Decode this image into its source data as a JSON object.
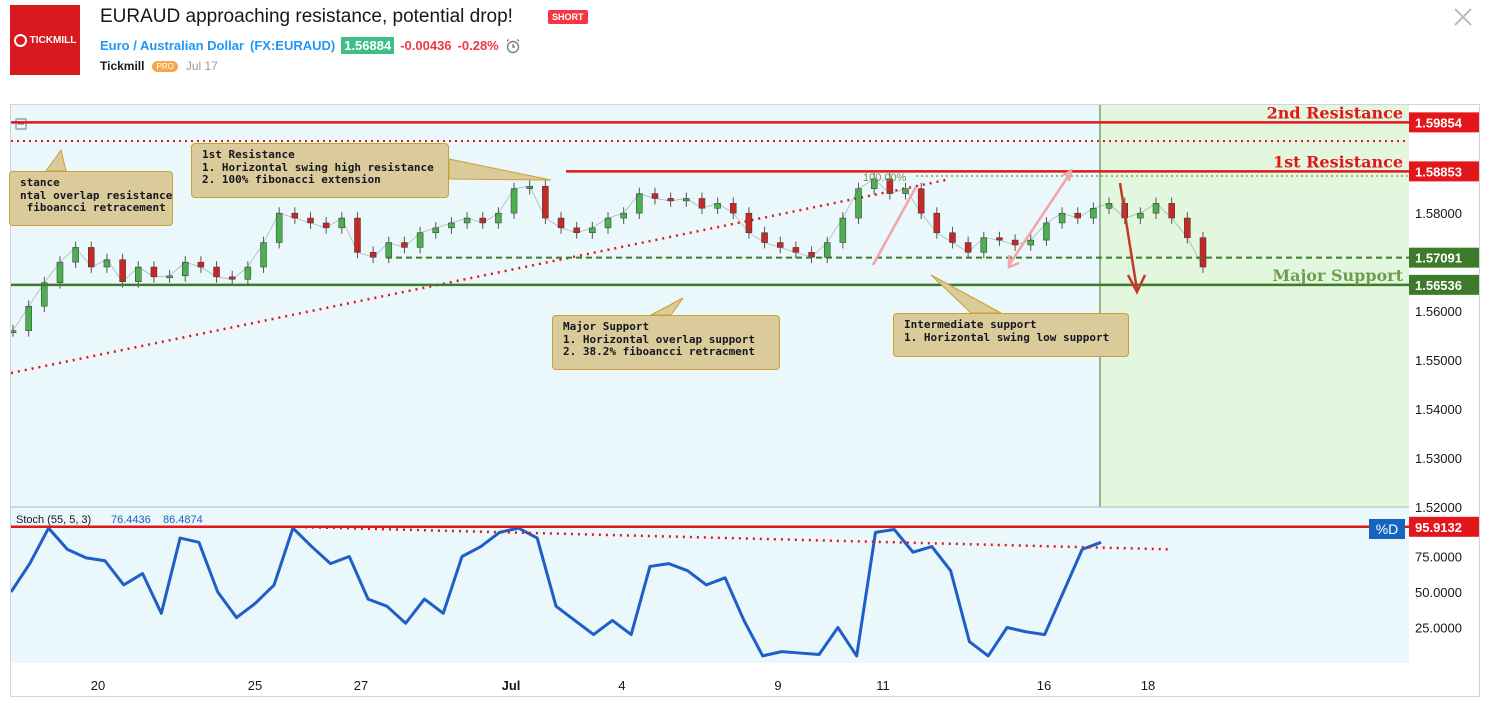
{
  "header": {
    "title": "EURAUD approaching resistance, potential drop!",
    "badge": "SHORT",
    "symbol_name": "Euro / Australian Dollar",
    "symbol_code": "(FX:EURAUD)",
    "price": "1.56884",
    "change": "-0.00436",
    "change_pct": "-0.28%",
    "author": "Tickmill",
    "author_badge": "PRO",
    "date": "Jul 17",
    "logo_text": "TICKMILL"
  },
  "colors": {
    "resistance": "#e2161b",
    "support_dark": "#3d7a29",
    "support_label": "#6d9f4e",
    "projection_zone": "#e2f7dd",
    "chart_bg": "#eaf7fb",
    "stoch": "#1e5fc7",
    "annotation_bg": "#dccb9a"
  },
  "chart_data": {
    "type": "line",
    "main_panel": {
      "ylim": [
        1.52,
        1.598
      ],
      "y_ticks": [
        "1.52000",
        "1.53000",
        "1.54000",
        "1.55000",
        "1.56000",
        "1.57000",
        "1.58000"
      ],
      "x_ticks": [
        "20",
        "25",
        "27",
        "Jul",
        "4",
        "9",
        "11",
        "16",
        "18"
      ],
      "levels": [
        {
          "name": "2nd Resistance",
          "value": "1.59854"
        },
        {
          "name": "1st Resistance",
          "value": "1.58853"
        },
        {
          "name": "",
          "value": "1.57091"
        },
        {
          "name": "Major Support",
          "value": "1.56536"
        }
      ],
      "fib_label": "100.00%",
      "series": [
        {
          "x": 0,
          "y": 1.556
        },
        {
          "x": 1,
          "y": 1.561
        },
        {
          "x": 2,
          "y": 1.5658
        },
        {
          "x": 3,
          "y": 1.57
        },
        {
          "x": 4,
          "y": 1.573
        },
        {
          "x": 5,
          "y": 1.569
        },
        {
          "x": 6,
          "y": 1.5705
        },
        {
          "x": 7,
          "y": 1.566
        },
        {
          "x": 8,
          "y": 1.569
        },
        {
          "x": 9,
          "y": 1.567
        },
        {
          "x": 10,
          "y": 1.5672
        },
        {
          "x": 11,
          "y": 1.57
        },
        {
          "x": 12,
          "y": 1.569
        },
        {
          "x": 13,
          "y": 1.567
        },
        {
          "x": 14,
          "y": 1.5665
        },
        {
          "x": 15,
          "y": 1.569
        },
        {
          "x": 16,
          "y": 1.574
        },
        {
          "x": 17,
          "y": 1.58
        },
        {
          "x": 18,
          "y": 1.579
        },
        {
          "x": 19,
          "y": 1.578
        },
        {
          "x": 20,
          "y": 1.577
        },
        {
          "x": 21,
          "y": 1.579
        },
        {
          "x": 22,
          "y": 1.572
        },
        {
          "x": 23,
          "y": 1.571
        },
        {
          "x": 24,
          "y": 1.574
        },
        {
          "x": 25,
          "y": 1.573
        },
        {
          "x": 26,
          "y": 1.576
        },
        {
          "x": 27,
          "y": 1.577
        },
        {
          "x": 28,
          "y": 1.578
        },
        {
          "x": 29,
          "y": 1.579
        },
        {
          "x": 30,
          "y": 1.578
        },
        {
          "x": 31,
          "y": 1.58
        },
        {
          "x": 32,
          "y": 1.585
        },
        {
          "x": 33,
          "y": 1.5855
        },
        {
          "x": 34,
          "y": 1.579
        },
        {
          "x": 35,
          "y": 1.577
        },
        {
          "x": 36,
          "y": 1.576
        },
        {
          "x": 37,
          "y": 1.577
        },
        {
          "x": 38,
          "y": 1.579
        },
        {
          "x": 39,
          "y": 1.58
        },
        {
          "x": 40,
          "y": 1.584
        },
        {
          "x": 41,
          "y": 1.583
        },
        {
          "x": 42,
          "y": 1.5825
        },
        {
          "x": 43,
          "y": 1.583
        },
        {
          "x": 44,
          "y": 1.581
        },
        {
          "x": 45,
          "y": 1.582
        },
        {
          "x": 46,
          "y": 1.58
        },
        {
          "x": 47,
          "y": 1.576
        },
        {
          "x": 48,
          "y": 1.574
        },
        {
          "x": 49,
          "y": 1.573
        },
        {
          "x": 50,
          "y": 1.572
        },
        {
          "x": 51,
          "y": 1.571
        },
        {
          "x": 52,
          "y": 1.574
        },
        {
          "x": 53,
          "y": 1.579
        },
        {
          "x": 54,
          "y": 1.585
        },
        {
          "x": 55,
          "y": 1.587
        },
        {
          "x": 56,
          "y": 1.584
        },
        {
          "x": 57,
          "y": 1.585
        },
        {
          "x": 58,
          "y": 1.58
        },
        {
          "x": 59,
          "y": 1.576
        },
        {
          "x": 60,
          "y": 1.574
        },
        {
          "x": 61,
          "y": 1.572
        },
        {
          "x": 62,
          "y": 1.575
        },
        {
          "x": 63,
          "y": 1.5745
        },
        {
          "x": 64,
          "y": 1.5735
        },
        {
          "x": 65,
          "y": 1.5745
        },
        {
          "x": 66,
          "y": 1.578
        },
        {
          "x": 67,
          "y": 1.58
        },
        {
          "x": 68,
          "y": 1.579
        },
        {
          "x": 69,
          "y": 1.581
        },
        {
          "x": 70,
          "y": 1.582
        },
        {
          "x": 71,
          "y": 1.579
        },
        {
          "x": 72,
          "y": 1.58
        },
        {
          "x": 73,
          "y": 1.582
        },
        {
          "x": 74,
          "y": 1.579
        },
        {
          "x": 75,
          "y": 1.575
        },
        {
          "x": 76,
          "y": 1.569
        }
      ]
    },
    "stoch_panel": {
      "label": "Stoch (55, 5, 3)",
      "values_shown": [
        "76.4436",
        "86.4874"
      ],
      "ylim": [
        0,
        100
      ],
      "y_ticks": [
        "25.0000",
        "50.0000",
        "75.0000"
      ],
      "resistance_value": "95.9132",
      "legend_tag": "%D",
      "series": [
        {
          "x": 0,
          "y": 50
        },
        {
          "x": 1,
          "y": 70
        },
        {
          "x": 2,
          "y": 95
        },
        {
          "x": 3,
          "y": 80
        },
        {
          "x": 4,
          "y": 74
        },
        {
          "x": 5,
          "y": 72
        },
        {
          "x": 6,
          "y": 55
        },
        {
          "x": 7,
          "y": 63
        },
        {
          "x": 8,
          "y": 35
        },
        {
          "x": 9,
          "y": 88
        },
        {
          "x": 10,
          "y": 85
        },
        {
          "x": 11,
          "y": 50
        },
        {
          "x": 12,
          "y": 32
        },
        {
          "x": 13,
          "y": 42
        },
        {
          "x": 14,
          "y": 55
        },
        {
          "x": 15,
          "y": 95
        },
        {
          "x": 16,
          "y": 82
        },
        {
          "x": 17,
          "y": 70
        },
        {
          "x": 18,
          "y": 75
        },
        {
          "x": 19,
          "y": 45
        },
        {
          "x": 20,
          "y": 40
        },
        {
          "x": 21,
          "y": 28
        },
        {
          "x": 22,
          "y": 45
        },
        {
          "x": 23,
          "y": 35
        },
        {
          "x": 24,
          "y": 75
        },
        {
          "x": 25,
          "y": 82
        },
        {
          "x": 26,
          "y": 92
        },
        {
          "x": 27,
          "y": 95
        },
        {
          "x": 28,
          "y": 88
        },
        {
          "x": 29,
          "y": 40
        },
        {
          "x": 30,
          "y": 30
        },
        {
          "x": 31,
          "y": 20
        },
        {
          "x": 32,
          "y": 30
        },
        {
          "x": 33,
          "y": 20
        },
        {
          "x": 34,
          "y": 68
        },
        {
          "x": 35,
          "y": 70
        },
        {
          "x": 36,
          "y": 65
        },
        {
          "x": 37,
          "y": 55
        },
        {
          "x": 38,
          "y": 60
        },
        {
          "x": 39,
          "y": 30
        },
        {
          "x": 40,
          "y": 5
        },
        {
          "x": 41,
          "y": 8
        },
        {
          "x": 42,
          "y": 7
        },
        {
          "x": 43,
          "y": 6
        },
        {
          "x": 44,
          "y": 25
        },
        {
          "x": 45,
          "y": 5
        },
        {
          "x": 46,
          "y": 92
        },
        {
          "x": 47,
          "y": 94
        },
        {
          "x": 48,
          "y": 78
        },
        {
          "x": 49,
          "y": 82
        },
        {
          "x": 50,
          "y": 65
        },
        {
          "x": 51,
          "y": 15
        },
        {
          "x": 52,
          "y": 5
        },
        {
          "x": 53,
          "y": 25
        },
        {
          "x": 54,
          "y": 22
        },
        {
          "x": 55,
          "y": 20
        },
        {
          "x": 56,
          "y": 50
        },
        {
          "x": 57,
          "y": 80
        },
        {
          "x": 58,
          "y": 85
        }
      ]
    }
  },
  "annotations": {
    "left": "stance\nntal overlap resistance\n fiboancci retracement",
    "first_res": "1st Resistance\n1. Horizontal swing high resistance\n2. 100% fibonacci extension",
    "major_sup": "Major Support\n1. Horizontal overlap support\n2. 38.2% fiboancci retracment",
    "intermediate": "Intermediate support\n1. Horizontal swing low support"
  }
}
